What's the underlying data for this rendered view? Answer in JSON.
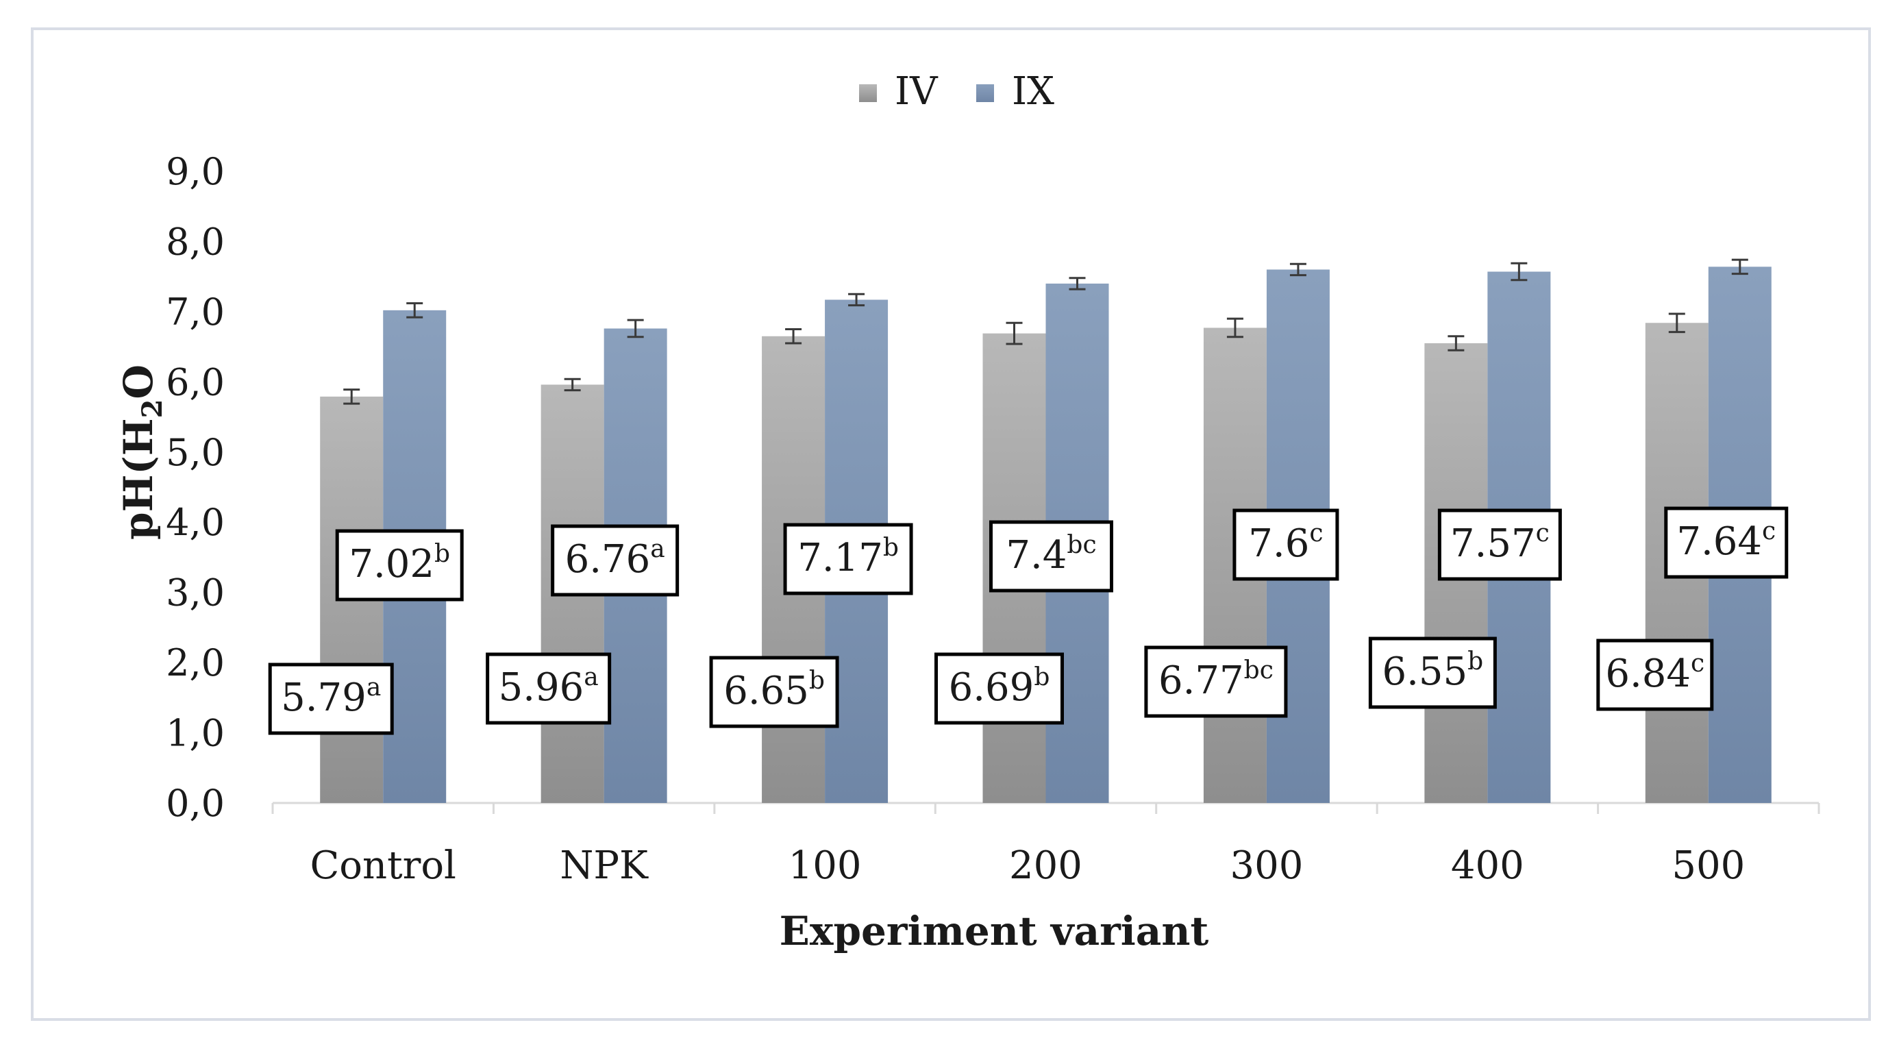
{
  "chart_data": {
    "type": "bar",
    "title": "",
    "xlabel": "Experiment variant",
    "ylabel_main": "pH(H",
    "ylabel_sub": "2",
    "ylabel_tail": "O",
    "ylim": [
      0,
      9
    ],
    "ytick_values": [
      0,
      1,
      2,
      3,
      4,
      5,
      6,
      7,
      8,
      9
    ],
    "ytick_labels": [
      "0,0",
      "1,0",
      "2,0",
      "3,0",
      "4,0",
      "5,0",
      "6,0",
      "7,0",
      "8,0",
      "9,0"
    ],
    "categories": [
      "Control",
      "NPK",
      "100",
      "200",
      "300",
      "400",
      "500"
    ],
    "legend_position": "top-center",
    "series": [
      {
        "name": "IV",
        "color": "#a3a3a3",
        "values": [
          5.79,
          5.96,
          6.65,
          6.69,
          6.77,
          6.55,
          6.84
        ],
        "errors": [
          0.1,
          0.08,
          0.1,
          0.15,
          0.13,
          0.1,
          0.13
        ],
        "labels": [
          {
            "value": "5.79",
            "sup": "a"
          },
          {
            "value": "5.96",
            "sup": "a"
          },
          {
            "value": "6.65",
            "sup": "b"
          },
          {
            "value": "6.69",
            "sup": "b"
          },
          {
            "value": "6.77",
            "sup": "bc"
          },
          {
            "value": "6.55",
            "sup": "b"
          },
          {
            "value": "6.84",
            "sup": "c"
          }
        ]
      },
      {
        "name": "IX",
        "color": "#7f95b4",
        "values": [
          7.02,
          6.76,
          7.17,
          7.4,
          7.6,
          7.57,
          7.64
        ],
        "errors": [
          0.1,
          0.12,
          0.08,
          0.08,
          0.08,
          0.12,
          0.1
        ],
        "labels": [
          {
            "value": "7.02",
            "sup": "b"
          },
          {
            "value": "6.76",
            "sup": "a"
          },
          {
            "value": "7.17",
            "sup": "b"
          },
          {
            "value": "7.4",
            "sup": "bc"
          },
          {
            "value": "7.6",
            "sup": "c"
          },
          {
            "value": "7.57",
            "sup": "c"
          },
          {
            "value": "7.64",
            "sup": "c"
          }
        ]
      }
    ]
  }
}
